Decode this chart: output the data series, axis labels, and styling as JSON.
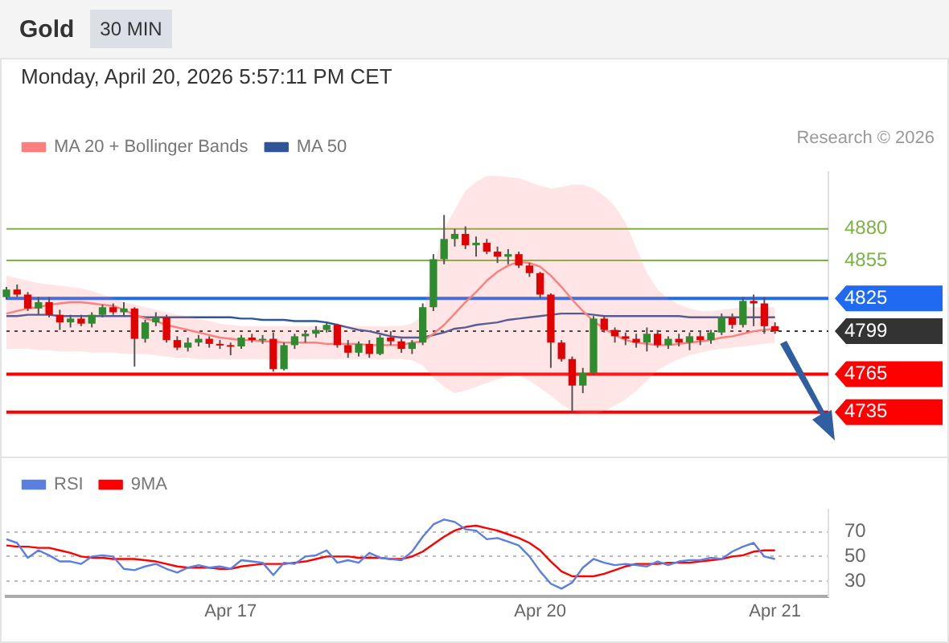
{
  "chart_data": [
    {
      "type": "candlestick",
      "title": "Gold",
      "subtitle": "Monday, April 20, 2026 5:57:11 PM CET",
      "annotations": [
        "30 MIN",
        "Research © 2026"
      ],
      "categories": [
        null,
        null,
        null,
        null,
        null,
        null,
        null,
        null,
        null,
        null,
        null,
        null,
        null,
        null,
        null,
        null,
        null,
        null,
        null,
        null,
        null,
        null,
        null,
        null,
        null,
        null,
        null,
        null,
        null,
        null,
        null,
        null,
        null,
        null,
        null,
        null,
        null,
        null,
        null,
        null,
        null,
        null,
        null,
        null,
        null,
        null,
        null,
        null,
        null,
        null,
        null,
        null,
        null,
        null,
        null,
        null,
        null,
        null,
        null,
        null,
        null,
        null,
        null,
        null,
        null,
        null,
        null,
        null,
        null,
        null,
        null,
        null,
        null,
        null,
        null,
        null,
        null,
        null
      ],
      "ohlc": [
        [
          4826,
          4834,
          4824,
          4832
        ],
        [
          4832,
          4836,
          4826,
          4828
        ],
        [
          4828,
          4830,
          4815,
          4817
        ],
        [
          4817,
          4826,
          4812,
          4822
        ],
        [
          4822,
          4826,
          4810,
          4812
        ],
        [
          4812,
          4816,
          4800,
          4806
        ],
        [
          4806,
          4812,
          4802,
          4809
        ],
        [
          4809,
          4812,
          4803,
          4805
        ],
        [
          4805,
          4814,
          4802,
          4812
        ],
        [
          4812,
          4820,
          4810,
          4818
        ],
        [
          4818,
          4821,
          4812,
          4814
        ],
        [
          4814,
          4822,
          4811,
          4817
        ],
        [
          4817,
          4818,
          4771,
          4793
        ],
        [
          4793,
          4808,
          4790,
          4806
        ],
        [
          4806,
          4814,
          4803,
          4810
        ],
        [
          4810,
          4812,
          4790,
          4792
        ],
        [
          4792,
          4795,
          4784,
          4786
        ],
        [
          4786,
          4794,
          4783,
          4790
        ],
        [
          4790,
          4796,
          4787,
          4793
        ],
        [
          4793,
          4795,
          4786,
          4789
        ],
        [
          4789,
          4792,
          4785,
          4788
        ],
        [
          4788,
          4790,
          4780,
          4787
        ],
        [
          4787,
          4796,
          4785,
          4794
        ],
        [
          4794,
          4797,
          4790,
          4792
        ],
        [
          4792,
          4796,
          4789,
          4793
        ],
        [
          4793,
          4798,
          4767,
          4769
        ],
        [
          4769,
          4790,
          4768,
          4788
        ],
        [
          4788,
          4797,
          4785,
          4795
        ],
        [
          4795,
          4799,
          4790,
          4797
        ],
        [
          4797,
          4803,
          4794,
          4800
        ],
        [
          4800,
          4806,
          4798,
          4804
        ],
        [
          4804,
          4805,
          4786,
          4788
        ],
        [
          4788,
          4792,
          4778,
          4782
        ],
        [
          4782,
          4791,
          4779,
          4789
        ],
        [
          4789,
          4792,
          4778,
          4781
        ],
        [
          4781,
          4796,
          4780,
          4794
        ],
        [
          4794,
          4799,
          4788,
          4791
        ],
        [
          4791,
          4793,
          4782,
          4785
        ],
        [
          4785,
          4792,
          4781,
          4790
        ],
        [
          4790,
          4821,
          4788,
          4818
        ],
        [
          4818,
          4860,
          4815,
          4856
        ],
        [
          4856,
          4891,
          4852,
          4872
        ],
        [
          4872,
          4880,
          4866,
          4876
        ],
        [
          4876,
          4882,
          4864,
          4867
        ],
        [
          4867,
          4874,
          4858,
          4869
        ],
        [
          4869,
          4872,
          4860,
          4862
        ],
        [
          4862,
          4866,
          4853,
          4858
        ],
        [
          4858,
          4864,
          4852,
          4860
        ],
        [
          4860,
          4862,
          4849,
          4851
        ],
        [
          4851,
          4853,
          4842,
          4845
        ],
        [
          4845,
          4846,
          4825,
          4828
        ],
        [
          4828,
          4829,
          4770,
          4790
        ],
        [
          4790,
          4792,
          4775,
          4777
        ],
        [
          4777,
          4779,
          4735,
          4756
        ],
        [
          4756,
          4770,
          4750,
          4766
        ],
        [
          4766,
          4811,
          4764,
          4809
        ],
        [
          4809,
          4811,
          4798,
          4800
        ],
        [
          4800,
          4802,
          4790,
          4795
        ],
        [
          4795,
          4798,
          4788,
          4793
        ],
        [
          4793,
          4797,
          4786,
          4790
        ],
        [
          4790,
          4802,
          4783,
          4797
        ],
        [
          4797,
          4800,
          4786,
          4788
        ],
        [
          4788,
          4795,
          4785,
          4793
        ],
        [
          4793,
          4797,
          4787,
          4790
        ],
        [
          4790,
          4798,
          4784,
          4795
        ],
        [
          4795,
          4799,
          4788,
          4792
        ],
        [
          4792,
          4800,
          4789,
          4798
        ],
        [
          4798,
          4813,
          4796,
          4810
        ],
        [
          4810,
          4813,
          4801,
          4804
        ],
        [
          4804,
          4826,
          4802,
          4823
        ],
        [
          4823,
          4828,
          4803,
          4821
        ],
        [
          4821,
          4826,
          4797,
          4803
        ],
        [
          4803,
          4806,
          4797,
          4799
        ],
        null,
        null,
        null,
        null,
        null
      ],
      "series": [
        {
          "name": "MA 20 + Bollinger Bands",
          "type": "line",
          "color": "#ff7f7f",
          "values": [
            4813,
            4815,
            4817,
            4818,
            4820,
            4821,
            4822,
            4822,
            4821,
            4820,
            4819,
            4816,
            4812,
            4809,
            4807,
            4804,
            4802,
            4800,
            4798,
            4796,
            4794,
            4793,
            4792,
            4792,
            4791,
            4791,
            4790,
            4790,
            4790,
            4790,
            4789,
            4789,
            4789,
            4789,
            4788,
            4788,
            4788,
            4788,
            4790,
            4791,
            4797,
            4804,
            4813,
            4822,
            4830,
            4839,
            4846,
            4851,
            4854,
            4853,
            4850,
            4843,
            4834,
            4824,
            4815,
            4807,
            4801,
            4796,
            4792,
            4790,
            4789,
            4788,
            4788,
            4789,
            4790,
            4791,
            4792,
            4794,
            4795,
            4797,
            4799,
            4800,
            4801,
            null,
            null,
            null,
            null,
            null
          ],
          "upper": [
            4843,
            4841,
            4839,
            4837,
            4836,
            4835,
            4834,
            4833,
            4831,
            4828,
            4825,
            4822,
            4820,
            4818,
            4816,
            4814,
            4812,
            4811,
            4809,
            4807,
            4805,
            4804,
            4803,
            4803,
            4803,
            4803,
            4803,
            4803,
            4803,
            4803,
            4803,
            4803,
            4803,
            4803,
            4803,
            4803,
            4803,
            4803,
            4805,
            4812,
            4850,
            4880,
            4895,
            4910,
            4917,
            4922,
            4922,
            4921,
            4920,
            4917,
            4914,
            4912,
            4913,
            4915,
            4915,
            4912,
            4906,
            4898,
            4885,
            4865,
            4845,
            4832,
            4825,
            4820,
            4817,
            4815,
            4815,
            4816,
            4817,
            4818,
            4818,
            4818,
            4818,
            null,
            null,
            null,
            null,
            null
          ],
          "lower": [
            4785,
            4785,
            4785,
            4784,
            4784,
            4783,
            4783,
            4783,
            4782,
            4782,
            4782,
            4781,
            4781,
            4781,
            4780,
            4779,
            4778,
            4778,
            4777,
            4777,
            4777,
            4777,
            4777,
            4777,
            4777,
            4777,
            4777,
            4777,
            4777,
            4777,
            4777,
            4777,
            4777,
            4777,
            4777,
            4777,
            4777,
            4777,
            4776,
            4772,
            4762,
            4755,
            4750,
            4752,
            4755,
            4758,
            4761,
            4763,
            4764,
            4760,
            4754,
            4748,
            4741,
            4736,
            4734,
            4733,
            4736,
            4740,
            4745,
            4752,
            4760,
            4768,
            4773,
            4777,
            4780,
            4782,
            4784,
            4785,
            4786,
            4787,
            4788,
            4789,
            4790,
            null,
            null,
            null,
            null,
            null
          ]
        },
        {
          "name": "MA 50",
          "type": "line",
          "color": "#2f5597",
          "values": [
            4811,
            4811,
            4812,
            4812,
            4812,
            4811,
            4811,
            4811,
            4811,
            4811,
            4811,
            4811,
            4811,
            4810,
            4810,
            4810,
            4810,
            4810,
            4810,
            4810,
            4810,
            4810,
            4809,
            4809,
            4808,
            4808,
            4808,
            4807,
            4807,
            4807,
            4806,
            4804,
            4802,
            4800,
            4799,
            4797,
            4795,
            4794,
            4794,
            4794,
            4796,
            4798,
            4801,
            4802,
            4804,
            4805,
            4806,
            4808,
            4809,
            4810,
            4811,
            4812,
            4813,
            4813,
            4813,
            4812,
            4811,
            4811,
            4811,
            4811,
            4811,
            4811,
            4811,
            4811,
            4810,
            4810,
            4810,
            4810,
            4810,
            4810,
            4810,
            4810,
            4810,
            null,
            null,
            null,
            null,
            null
          ]
        }
      ],
      "ylim": [
        4723,
        4925
      ],
      "yticks": [
        4735,
        4765,
        4799,
        4825,
        4855,
        4880
      ],
      "tick_labels": "y",
      "legend": "top left",
      "marker": "none",
      "ref_lines": [
        {
          "axis": "y",
          "value": 4880,
          "color": "#7cb342"
        },
        {
          "axis": "y",
          "value": 4855,
          "color": "#7cb342"
        },
        {
          "axis": "y",
          "value": 4825,
          "color": "#1f6af0"
        },
        {
          "axis": "y",
          "value": 4799,
          "color": "#333333",
          "line_style": "dotted"
        },
        {
          "axis": "y",
          "value": 4765,
          "color": "#ff0000"
        },
        {
          "axis": "y",
          "value": 4735,
          "color": "#ff0000"
        }
      ]
    },
    {
      "type": "line",
      "categories": [
        null,
        null,
        null,
        null,
        null,
        null,
        null,
        null,
        null,
        null,
        null,
        null,
        null,
        null,
        null,
        null,
        null,
        null,
        null,
        null,
        null,
        "Apr 17",
        null,
        null,
        null,
        null,
        null,
        null,
        null,
        null,
        null,
        null,
        null,
        null,
        null,
        null,
        null,
        null,
        null,
        null,
        null,
        null,
        null,
        null,
        null,
        null,
        null,
        null,
        null,
        null,
        "Apr 20",
        null,
        null,
        null,
        null,
        null,
        null,
        null,
        null,
        null,
        null,
        null,
        null,
        null,
        null,
        null,
        null,
        null,
        null,
        null,
        null,
        null,
        "Apr 21",
        null,
        null,
        null,
        null,
        null
      ],
      "series": [
        {
          "name": "RSI",
          "color": "#5b7fe0",
          "values": [
            64,
            61,
            49,
            55,
            51,
            46,
            46,
            44,
            50,
            51,
            50,
            40,
            39,
            42,
            44,
            40,
            37,
            41,
            43,
            41,
            42,
            40,
            47,
            46,
            45,
            35,
            45,
            44,
            50,
            51,
            55,
            45,
            47,
            45,
            53,
            49,
            48,
            47,
            54,
            66,
            76,
            80,
            78,
            72,
            71,
            64,
            65,
            62,
            59,
            50,
            38,
            28,
            24,
            29,
            41,
            48,
            45,
            43,
            44,
            43,
            42,
            46,
            43,
            46,
            47,
            47,
            49,
            48,
            54,
            58,
            61,
            50,
            48,
            null,
            null,
            null,
            null,
            null
          ]
        },
        {
          "name": "9MA",
          "color": "#ff0000",
          "values": [
            59,
            58,
            58,
            57,
            57,
            55,
            53,
            50,
            49,
            49,
            48,
            48,
            48,
            47,
            46,
            44,
            42,
            41,
            41,
            41,
            40,
            40,
            42,
            43,
            44,
            44,
            44,
            45,
            46,
            48,
            50,
            50,
            50,
            49,
            49,
            49,
            48,
            48,
            50,
            54,
            60,
            66,
            71,
            74,
            75,
            73,
            71,
            68,
            65,
            61,
            55,
            46,
            38,
            34,
            34,
            34,
            36,
            39,
            42,
            44,
            44,
            44,
            45,
            45,
            45,
            46,
            47,
            48,
            50,
            51,
            54,
            55,
            55,
            null,
            null,
            null,
            null,
            null
          ]
        }
      ],
      "ylim": [
        18,
        88
      ],
      "yticks": [
        30,
        50,
        70
      ],
      "grid": "y",
      "legend": "top left",
      "marker": "none"
    }
  ]
}
